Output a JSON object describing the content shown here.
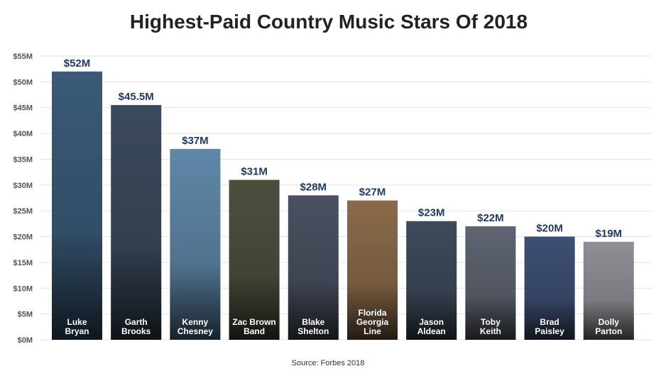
{
  "chart_data": {
    "type": "bar",
    "title": "Highest-Paid Country Music Stars Of 2018",
    "source": "Source: Forbes 2018",
    "categories": [
      [
        "Luke",
        "Bryan"
      ],
      [
        "Garth",
        "Brooks"
      ],
      [
        "Kenny",
        "Chesney"
      ],
      [
        "Zac Brown",
        "Band"
      ],
      [
        "Blake",
        "Shelton"
      ],
      [
        "Florida",
        "Georgia",
        "Line"
      ],
      [
        "Jason",
        "Aldean"
      ],
      [
        "Toby",
        "Keith"
      ],
      [
        "Brad",
        "Paisley"
      ],
      [
        "Dolly",
        "Parton"
      ]
    ],
    "values": [
      52,
      45.5,
      37,
      31,
      28,
      27,
      23,
      22,
      20,
      19
    ],
    "value_labels": [
      "$52M",
      "$45.5M",
      "$37M",
      "$31M",
      "$28M",
      "$27M",
      "$23M",
      "$22M",
      "$20M",
      "$19M"
    ],
    "ylim": [
      0,
      55
    ],
    "yticks": [
      0,
      5,
      10,
      15,
      20,
      25,
      30,
      35,
      40,
      45,
      50,
      55
    ],
    "ytick_labels": [
      "$0M",
      "$5M",
      "$10M",
      "$15M",
      "$20M",
      "$25M",
      "$30M",
      "$35M",
      "$40M",
      "$45M",
      "$50M",
      "$55M"
    ],
    "grid": true,
    "bar_fill_colors": [
      "#3a5a78",
      "#3b4a5c",
      "#5f87a8",
      "#4d4f3e",
      "#4a5060",
      "#8a6a4a",
      "#3e4a5a",
      "#5e6470",
      "#3d4f73",
      "#8f8f96"
    ],
    "colors": {
      "value_text": "#1f3b63",
      "grid": "#e3e3e3",
      "title": "#222222"
    }
  }
}
